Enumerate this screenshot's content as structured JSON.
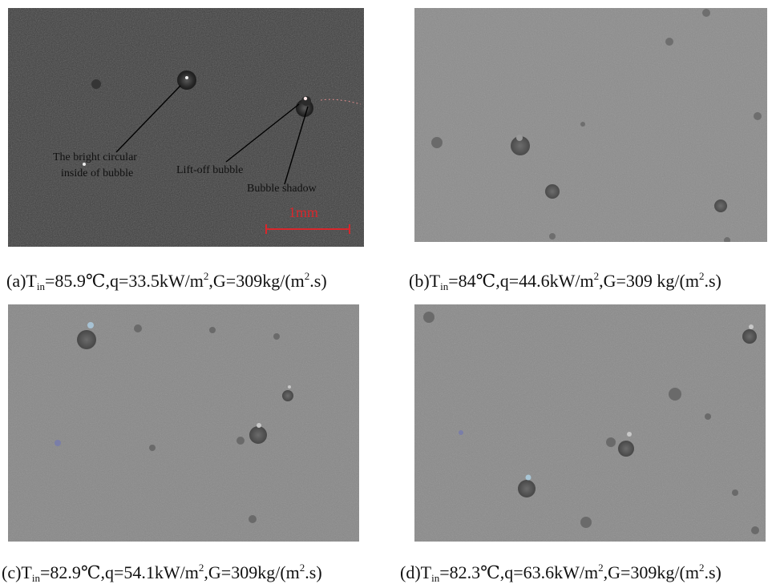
{
  "panels": [
    {
      "id": "a",
      "bg": "#3e3e3e",
      "annotations": {
        "bright_circular_line1": "The bright circular",
        "bright_circular_line2": "inside of bubble",
        "lift_off": "Lift-off bubble",
        "shadow": "Bubble shadow",
        "scale_bar": "1mm"
      },
      "caption": {
        "prefix": "(a)T",
        "sub": "in",
        "mid": "=85.9℃,q=33.5kW/m",
        "sup": "2",
        "suffix_a": ",G=309kg/(m",
        "sup2": "2",
        "suffix_b": ".s)"
      }
    },
    {
      "id": "b",
      "bg": "#8c8c8c",
      "caption": {
        "prefix": "(b)T",
        "sub": "in",
        "mid": "=84℃,q=44.6kW/m",
        "sup": "2",
        "suffix_a": ",G=309 kg/(m",
        "sup2": "2",
        "suffix_b": ".s)"
      }
    },
    {
      "id": "c",
      "bg": "#888888",
      "caption": {
        "prefix": "(c)T",
        "sub": "in",
        "mid": "=82.9℃,q=54.1kW/m",
        "sup": "2",
        "suffix_a": ",G=309kg/(m",
        "sup2": "2",
        "suffix_b": ".s)"
      }
    },
    {
      "id": "d",
      "bg": "#8a8a8a",
      "caption": {
        "prefix": "(d)T",
        "sub": "in",
        "mid": "=82.3℃,q=63.6kW/m",
        "sup": "2",
        "suffix_a": ",G=309kg/(m",
        "sup2": "2",
        "suffix_b": ".s)"
      }
    }
  ],
  "colors": {
    "scale_bar": "#d9262b",
    "annotation_text": "#101010"
  }
}
